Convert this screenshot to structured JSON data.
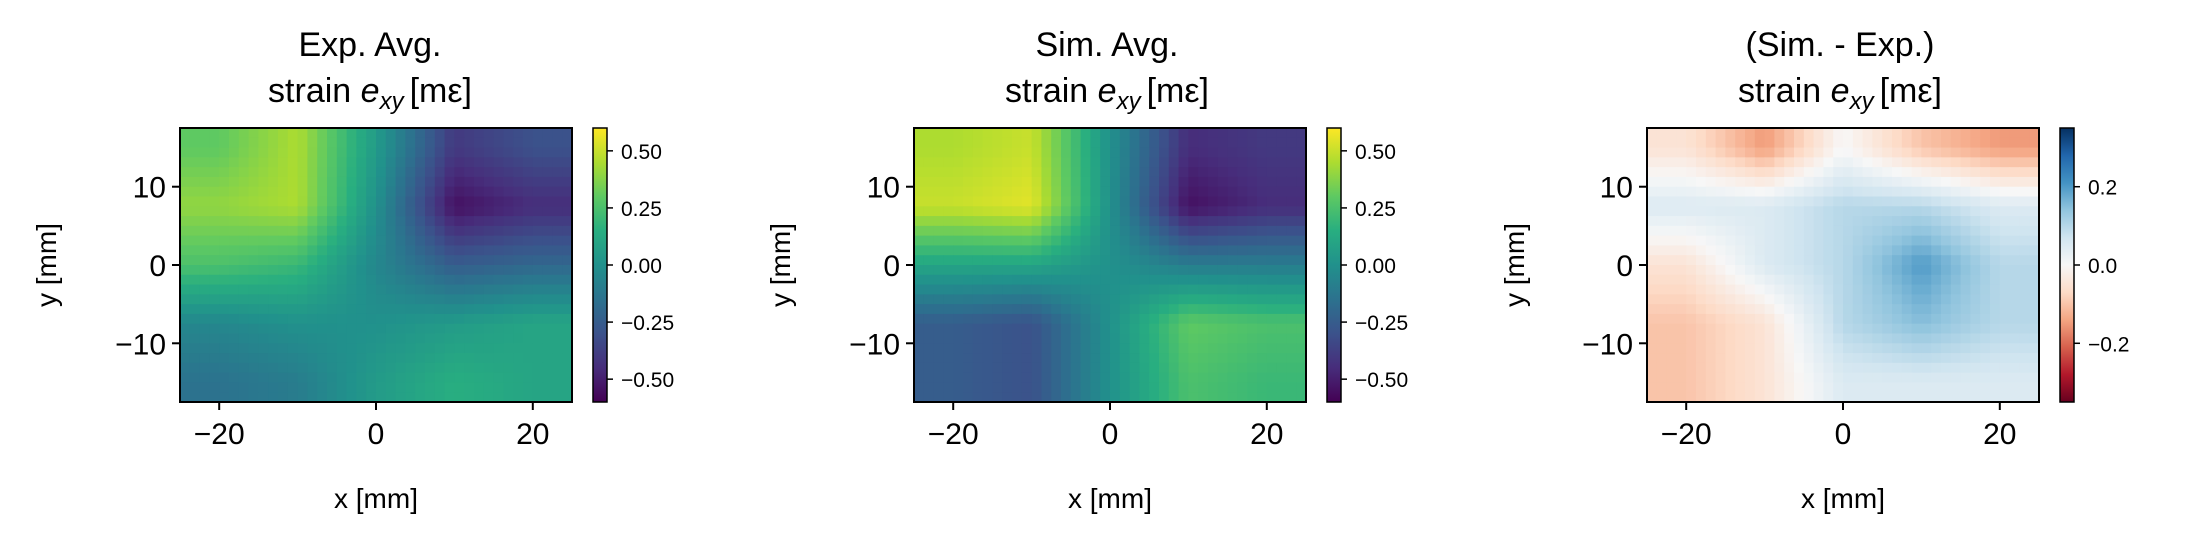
{
  "chart_data": [
    {
      "type": "heatmap",
      "title_line1": "Exp. Avg.",
      "title_prefix": "strain ",
      "title_var": "e",
      "title_sub": "xy",
      "title_unit": "[mε]",
      "xlabel": "x [mm]",
      "ylabel": "y [mm]",
      "xlim": [
        -25,
        25
      ],
      "ylim": [
        -17.5,
        17.5
      ],
      "xticks": [
        -20,
        0,
        20
      ],
      "yticks": [
        -10,
        0,
        10
      ],
      "colormap": "viridis",
      "clim": [
        -0.6,
        0.6
      ],
      "colorbar_ticks": [
        0.5,
        0.25,
        0.0,
        -0.25,
        -0.5
      ],
      "colorbar_tick_labels": [
        "0.50",
        "0.25",
        "0.00",
        "−0.25",
        "−0.50"
      ],
      "field": {
        "x": [
          -20,
          -10,
          0,
          10,
          20
        ],
        "y": [
          15,
          7.5,
          0,
          -7.5,
          -15
        ],
        "z": [
          [
            0.3,
            0.45,
            0.05,
            -0.4,
            -0.3
          ],
          [
            0.4,
            0.45,
            0.0,
            -0.55,
            -0.45
          ],
          [
            0.25,
            0.2,
            -0.05,
            -0.25,
            -0.2
          ],
          [
            -0.05,
            0.0,
            0.0,
            0.05,
            0.1
          ],
          [
            -0.15,
            -0.1,
            0.05,
            0.15,
            0.1
          ]
        ]
      }
    },
    {
      "type": "heatmap",
      "title_line1": "Sim. Avg.",
      "title_prefix": "strain ",
      "title_var": "e",
      "title_sub": "xy",
      "title_unit": "[mε]",
      "xlabel": "x [mm]",
      "ylabel": "y [mm]",
      "xlim": [
        -25,
        25
      ],
      "ylim": [
        -17.5,
        17.5
      ],
      "xticks": [
        -20,
        0,
        20
      ],
      "yticks": [
        -10,
        0,
        10
      ],
      "colormap": "viridis",
      "clim": [
        -0.6,
        0.6
      ],
      "colorbar_ticks": [
        0.5,
        0.25,
        0.0,
        -0.25,
        -0.5
      ],
      "colorbar_tick_labels": [
        "0.50",
        "0.25",
        "0.00",
        "−0.25",
        "−0.50"
      ],
      "field": {
        "x": [
          -20,
          -10,
          0,
          10,
          20
        ],
        "y": [
          15,
          7.5,
          0,
          -7.5,
          -15
        ],
        "z": [
          [
            0.45,
            0.5,
            0.0,
            -0.45,
            -0.4
          ],
          [
            0.5,
            0.55,
            0.0,
            -0.55,
            -0.45
          ],
          [
            0.1,
            0.1,
            0.0,
            -0.1,
            -0.1
          ],
          [
            -0.25,
            -0.3,
            0.0,
            0.3,
            0.25
          ],
          [
            -0.25,
            -0.3,
            0.0,
            0.25,
            0.2
          ]
        ]
      }
    },
    {
      "type": "heatmap",
      "title_line1": "(Sim. - Exp.)",
      "title_prefix": "strain ",
      "title_var": "e",
      "title_sub": "xy",
      "title_unit": "[mε]",
      "xlabel": "x [mm]",
      "ylabel": "y [mm]",
      "xlim": [
        -25,
        25
      ],
      "ylim": [
        -17.5,
        17.5
      ],
      "xticks": [
        -20,
        0,
        20
      ],
      "yticks": [
        -10,
        0,
        10
      ],
      "colormap": "RdBu",
      "clim": [
        -0.35,
        0.35
      ],
      "colorbar_ticks": [
        0.2,
        0.0,
        -0.2
      ],
      "colorbar_tick_labels": [
        "0.2",
        "0.0",
        "−0.2"
      ],
      "field": {
        "x": [
          -20,
          -10,
          0,
          10,
          20
        ],
        "y": [
          15,
          7.5,
          0,
          -7.5,
          -15
        ],
        "z": [
          [
            -0.05,
            -0.15,
            0.0,
            -0.1,
            -0.15
          ],
          [
            0.05,
            0.05,
            0.1,
            0.1,
            0.05
          ],
          [
            -0.05,
            0.05,
            0.1,
            0.2,
            0.1
          ],
          [
            -0.1,
            -0.05,
            0.1,
            0.15,
            0.1
          ],
          [
            -0.1,
            -0.05,
            0.05,
            0.05,
            0.05
          ]
        ]
      }
    }
  ]
}
